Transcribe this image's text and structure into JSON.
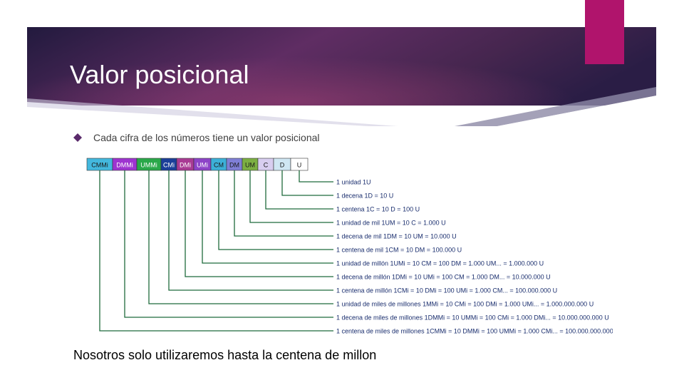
{
  "slide": {
    "title": "Valor posicional",
    "bullet": "Cada cifra de los números tiene un valor posicional",
    "note": "Nosotros solo utilizaremos hasta la centena de millon",
    "colors": {
      "banner_dark": "#2a1d45",
      "banner_mid": "#5f2d63",
      "banner_light": "#8b3a6e",
      "accent": "#b0146c",
      "line": "#1f6b3c"
    }
  },
  "place_values": {
    "headers": [
      {
        "label": "CMMi",
        "color": "#43b8de"
      },
      {
        "label": "DMMi",
        "color": "#9e34d0"
      },
      {
        "label": "UMMi",
        "color": "#2aa84a"
      },
      {
        "label": "CMi",
        "color": "#1b3f99"
      },
      {
        "label": "DMi",
        "color": "#a93b94"
      },
      {
        "label": "UMi",
        "color": "#8d44c8"
      },
      {
        "label": "CM",
        "color": "#3cb0d8"
      },
      {
        "label": "DM",
        "color": "#7f7fd6"
      },
      {
        "label": "UM",
        "color": "#7caf43"
      },
      {
        "label": "C",
        "color": "#d8cef0"
      },
      {
        "label": "D",
        "color": "#cfe7f3"
      },
      {
        "label": "U",
        "color": "#ffffff"
      }
    ],
    "rows": [
      "1 unidad   1U",
      "1 decena   1D = 10 U",
      "1 centena   1C = 10 D = 100 U",
      "1 unidad de mil   1UM = 10 C = 1.000 U",
      "1 decena de mil   1DM = 10 UM = 10.000 U",
      "1 centena de mil 1CM = 10 DM = 100.000 U",
      "1 unidad de millón 1UMi = 10 CM = 100 DM = 1.000 UM... = 1.000.000 U",
      "1 decena de millón 1DMi = 10 UMi = 100 CM = 1.000 DM... = 10.000.000 U",
      "1 centena de millón 1CMi = 10 DMi = 100 UMi = 1.000 CM... = 100.000.000 U",
      "1 unidad de miles de millones 1MMi = 10 CMi = 100 DMi = 1.000 UMi... = 1.000.000.000 U",
      "1 decena de miles de millones 1DMMi = 10 UMMi = 100 CMi = 1.000 DMi... = 10.000.000.000 U",
      "1 centena de miles de millones 1CMMi = 10 DMMi = 100 UMMi = 1.000 CMi... = 100.000.000.000 U"
    ]
  }
}
